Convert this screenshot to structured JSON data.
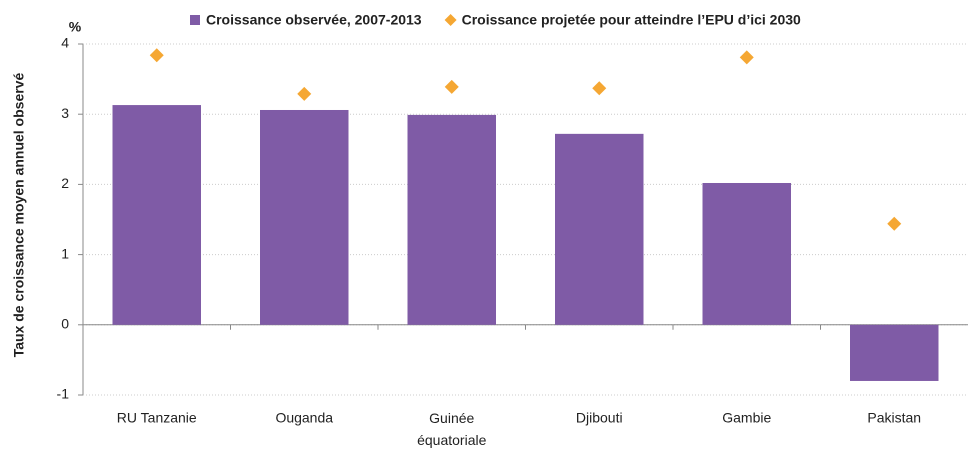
{
  "chart_data": {
    "type": "bar",
    "y_label": "Taux de croissance moyen annuel observé",
    "y_unit": "%",
    "categories": [
      "RU Tanzanie",
      "Ouganda",
      "Guinée équatoriale",
      "Djibouti",
      "Gambie",
      "Pakistan"
    ],
    "series": [
      {
        "name": "Croissance observée, 2007-2013",
        "color": "#7f5ba6",
        "type": "bar",
        "values": [
          3.13,
          3.06,
          2.99,
          2.72,
          2.02,
          -0.8
        ]
      },
      {
        "name": "Croissance projetée pour atteindre l’EPU d’ici 2030",
        "color": "#f5a733",
        "type": "marker",
        "values": [
          3.84,
          3.29,
          3.39,
          3.37,
          3.81,
          1.44
        ]
      }
    ],
    "ylim": [
      -1,
      4
    ],
    "yticks": [
      -1,
      0,
      1,
      2,
      3,
      4
    ],
    "grid": true,
    "legend": "top"
  }
}
